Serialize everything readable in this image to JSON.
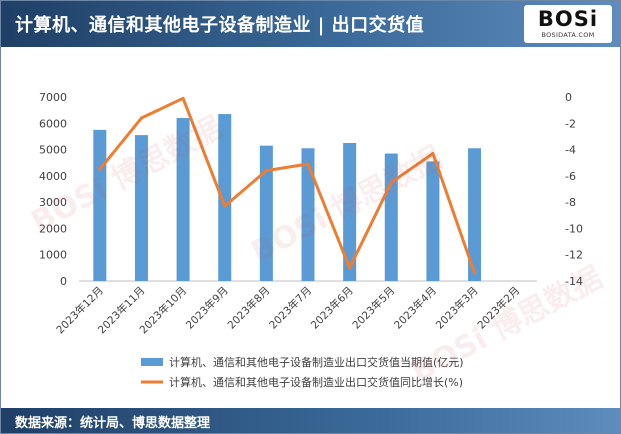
{
  "header": {
    "title": "计算机、通信和其他电子设备制造业 | 出口交货值"
  },
  "logo": {
    "word": "BOSi",
    "sub": "BOSIDATA.COM"
  },
  "footer": {
    "source": "数据来源：统计局、博思数据整理"
  },
  "watermark": {
    "text": "BOSi 博思数据"
  },
  "colors": {
    "bar": "#5b9bd5",
    "line": "#ed7d31",
    "header": "#2c5282"
  },
  "chart_data": {
    "type": "bar",
    "categories": [
      "2023年12月",
      "2023年11月",
      "2023年10月",
      "2023年9月",
      "2023年8月",
      "2023年7月",
      "2023年6月",
      "2023年5月",
      "2023年4月",
      "2023年3月",
      "2023年2月"
    ],
    "series": [
      {
        "name": "计算机、通信和其他电子设备制造业出口交货值当期值(亿元)",
        "type": "bar",
        "axis": "left",
        "values": [
          5750,
          5550,
          6200,
          6350,
          5150,
          5050,
          5250,
          4850,
          4550,
          5050,
          null
        ]
      },
      {
        "name": "计算机、通信和其他电子设备制造业出口交货值同比增长(%)",
        "type": "line",
        "axis": "right",
        "values": [
          -5.5,
          -1.6,
          -0.1,
          -8.3,
          -5.6,
          -5.1,
          -13.0,
          -6.5,
          -4.3,
          -13.4,
          null
        ]
      }
    ],
    "y_left": {
      "min": 0,
      "max": 7000,
      "ticks": [
        0,
        1000,
        2000,
        3000,
        4000,
        5000,
        6000,
        7000
      ]
    },
    "y_right": {
      "min": -14,
      "max": 0,
      "ticks": [
        0,
        -2,
        -4,
        -6,
        -8,
        -10,
        -12,
        -14
      ]
    },
    "legend_position": "bottom",
    "grid": false
  }
}
